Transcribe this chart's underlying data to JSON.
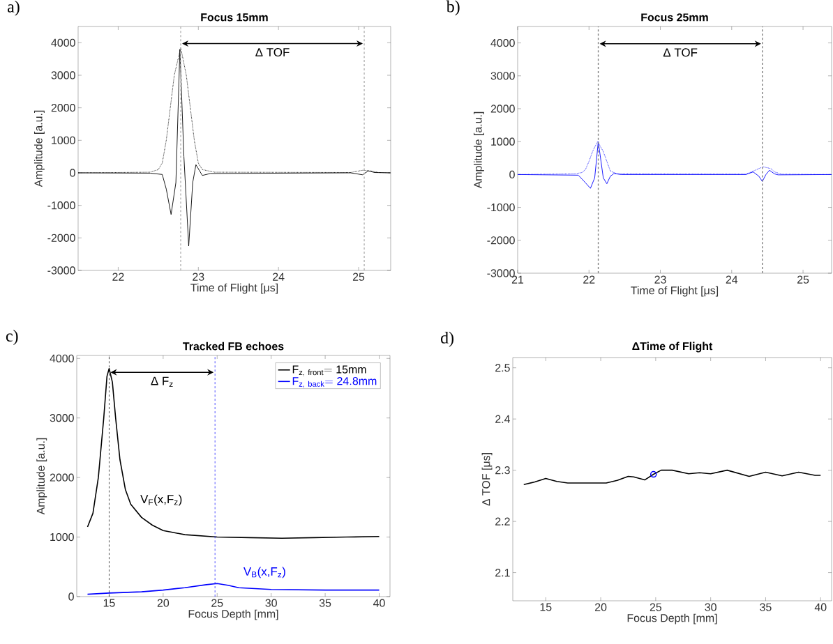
{
  "chart_data": [
    {
      "type": "line",
      "title": "Focus 15mm",
      "xlabel": "Time of Flight [μs]",
      "ylabel": "Amplitude [a.u.]",
      "xlim": [
        21.5,
        25.4
      ],
      "ylim": [
        -3000,
        4500
      ],
      "xticks": [
        22,
        23,
        24,
        25
      ],
      "yticks": [
        -3000,
        -2000,
        -1000,
        0,
        1000,
        2000,
        3000,
        4000
      ],
      "series": [
        {
          "type": "line",
          "color": "#000000",
          "line_style": "solid",
          "x": [
            21.5,
            22.4,
            22.55,
            22.6,
            22.66,
            22.72,
            22.77,
            22.82,
            22.88,
            22.93,
            22.97,
            23.05,
            23.15,
            24.9,
            25.05,
            25.12,
            25.2,
            25.4
          ],
          "values": [
            0,
            -10,
            -50,
            -500,
            -1280,
            -300,
            3800,
            500,
            -2250,
            -300,
            250,
            -80,
            -20,
            0,
            -60,
            60,
            10,
            0
          ]
        },
        {
          "type": "line",
          "color": "#000000",
          "line_style": "dotted",
          "x": [
            21.5,
            22.4,
            22.5,
            22.55,
            22.6,
            22.65,
            22.7,
            22.78,
            22.85,
            22.9,
            22.95,
            23.0,
            23.05,
            23.2,
            24.9,
            25.05,
            25.15,
            25.25,
            25.4
          ],
          "values": [
            0,
            20,
            100,
            300,
            1000,
            2000,
            3000,
            3850,
            3000,
            2000,
            1000,
            300,
            100,
            20,
            10,
            80,
            60,
            10,
            0
          ]
        }
      ],
      "ref_lines": [
        {
          "axis": "x",
          "value": 22.78,
          "color": "#b4b4b4",
          "line_style": "dashed"
        },
        {
          "axis": "x",
          "value": 25.07,
          "color": "#b4b4b4",
          "line_style": "dashed"
        }
      ],
      "annotations": [
        "a)",
        "Δ TOF"
      ]
    },
    {
      "type": "line",
      "title": "Focus 25mm",
      "xlabel": "Time of Flight [μs]",
      "ylabel": "Amplitude [a.u.]",
      "xlim": [
        21,
        25.4
      ],
      "ylim": [
        -3000,
        4500
      ],
      "xticks": [
        21,
        22,
        23,
        24,
        25
      ],
      "yticks": [
        -3000,
        -2000,
        -1000,
        0,
        1000,
        2000,
        3000,
        4000
      ],
      "series": [
        {
          "type": "line",
          "color": "#0000ff",
          "line_style": "solid",
          "x": [
            21,
            21.85,
            21.95,
            22.02,
            22.08,
            22.13,
            22.2,
            22.25,
            22.3,
            22.35,
            22.45,
            24.2,
            24.3,
            24.38,
            24.43,
            24.48,
            24.53,
            24.6,
            24.65,
            25.4
          ],
          "values": [
            0,
            -20,
            -250,
            -420,
            -100,
            1000,
            -100,
            -280,
            -50,
            30,
            0,
            0,
            80,
            -50,
            -210,
            0,
            130,
            20,
            -10,
            0
          ]
        },
        {
          "type": "line",
          "color": "#0000ff",
          "line_style": "dotted",
          "x": [
            21,
            21.8,
            21.9,
            21.95,
            22.0,
            22.05,
            22.12,
            22.2,
            22.25,
            22.3,
            22.4,
            24.2,
            24.3,
            24.4,
            24.45,
            24.55,
            24.6,
            24.7,
            25.4
          ],
          "values": [
            0,
            20,
            60,
            150,
            400,
            700,
            1000,
            700,
            400,
            100,
            20,
            10,
            100,
            200,
            230,
            180,
            80,
            10,
            0
          ]
        }
      ],
      "ref_lines": [
        {
          "axis": "x",
          "value": 22.13,
          "color": "#808080",
          "line_style": "dashed"
        },
        {
          "axis": "x",
          "value": 24.43,
          "color": "#808080",
          "line_style": "dashed"
        }
      ],
      "annotations": [
        "b)",
        "Δ TOF"
      ]
    },
    {
      "type": "line",
      "title": "Tracked FB echoes",
      "xlabel": "Focus Depth [mm]",
      "ylabel": "Amplitude [a.u.]",
      "xlim": [
        12,
        41
      ],
      "ylim": [
        0,
        4050
      ],
      "xticks": [
        15,
        20,
        25,
        30,
        35,
        40
      ],
      "yticks": [
        0,
        1000,
        2000,
        3000,
        4000
      ],
      "legend": "top right",
      "series": [
        {
          "type": "line",
          "name": "\\mathrm{F}_{\\mathrm{z,\\ front}}\\mathrm{=15mm}",
          "color": "#000000",
          "line_style": "solid",
          "x": [
            13,
            13.5,
            14,
            14.5,
            14.8,
            15,
            15.3,
            15.6,
            16,
            16.5,
            17,
            18,
            19,
            20,
            22,
            25,
            28,
            31,
            34,
            37,
            40
          ],
          "values": [
            1170,
            1400,
            2000,
            3000,
            3700,
            3830,
            3600,
            3000,
            2300,
            1800,
            1550,
            1330,
            1200,
            1110,
            1040,
            1000,
            990,
            980,
            990,
            1000,
            1010
          ]
        },
        {
          "type": "line",
          "name": "\\mathrm{F}_{\\mathrm{z,\\ back}}\\mathrm{=24.8mm}",
          "color": "#0000ff",
          "line_style": "solid",
          "x": [
            13,
            15,
            18,
            20,
            22,
            24,
            25,
            26,
            27,
            30,
            35,
            40
          ],
          "values": [
            40,
            60,
            80,
            110,
            150,
            200,
            220,
            190,
            150,
            120,
            110,
            110
          ]
        }
      ],
      "ref_lines": [
        {
          "axis": "x",
          "value": 15,
          "color": "#000000",
          "line_style": "dashed"
        },
        {
          "axis": "x",
          "value": 24.8,
          "color": "#0000ff",
          "line_style": "dashed"
        }
      ],
      "annotations": [
        "c)",
        "Δ F$_{z}$",
        "V$_{F}$(x,F$_{z}$)",
        "V$_{B}$(x,F$_{z}$)"
      ]
    },
    {
      "type": "line",
      "title": "ΔTime of Flight",
      "xlabel": "Focus Depth [mm]",
      "ylabel": "Δ TOF [μs]",
      "xlim": [
        12,
        41
      ],
      "ylim": [
        2.045,
        2.52
      ],
      "xticks": [
        15,
        20,
        25,
        30,
        35,
        40
      ],
      "yticks": [
        2.1,
        2.2,
        2.3,
        2.4,
        2.5
      ],
      "series": [
        {
          "type": "line",
          "color": "#000000",
          "line_style": "solid",
          "x": [
            13,
            14,
            15,
            16,
            17,
            19,
            20.5,
            21.5,
            22.5,
            23,
            24,
            24.8,
            25.5,
            26.5,
            28,
            29,
            30,
            31.5,
            33.5,
            35,
            36.5,
            38,
            39.5,
            40
          ],
          "values": [
            2.272,
            2.277,
            2.284,
            2.278,
            2.275,
            2.275,
            2.275,
            2.28,
            2.288,
            2.287,
            2.281,
            2.292,
            2.3,
            2.3,
            2.293,
            2.295,
            2.293,
            2.3,
            2.288,
            2.296,
            2.289,
            2.296,
            2.29,
            2.29
          ]
        },
        {
          "type": "scatter",
          "color": "#0000ff",
          "marker": "circle",
          "x": [
            24.8
          ],
          "values": [
            2.292
          ]
        }
      ],
      "annotations": [
        "d)"
      ]
    }
  ]
}
